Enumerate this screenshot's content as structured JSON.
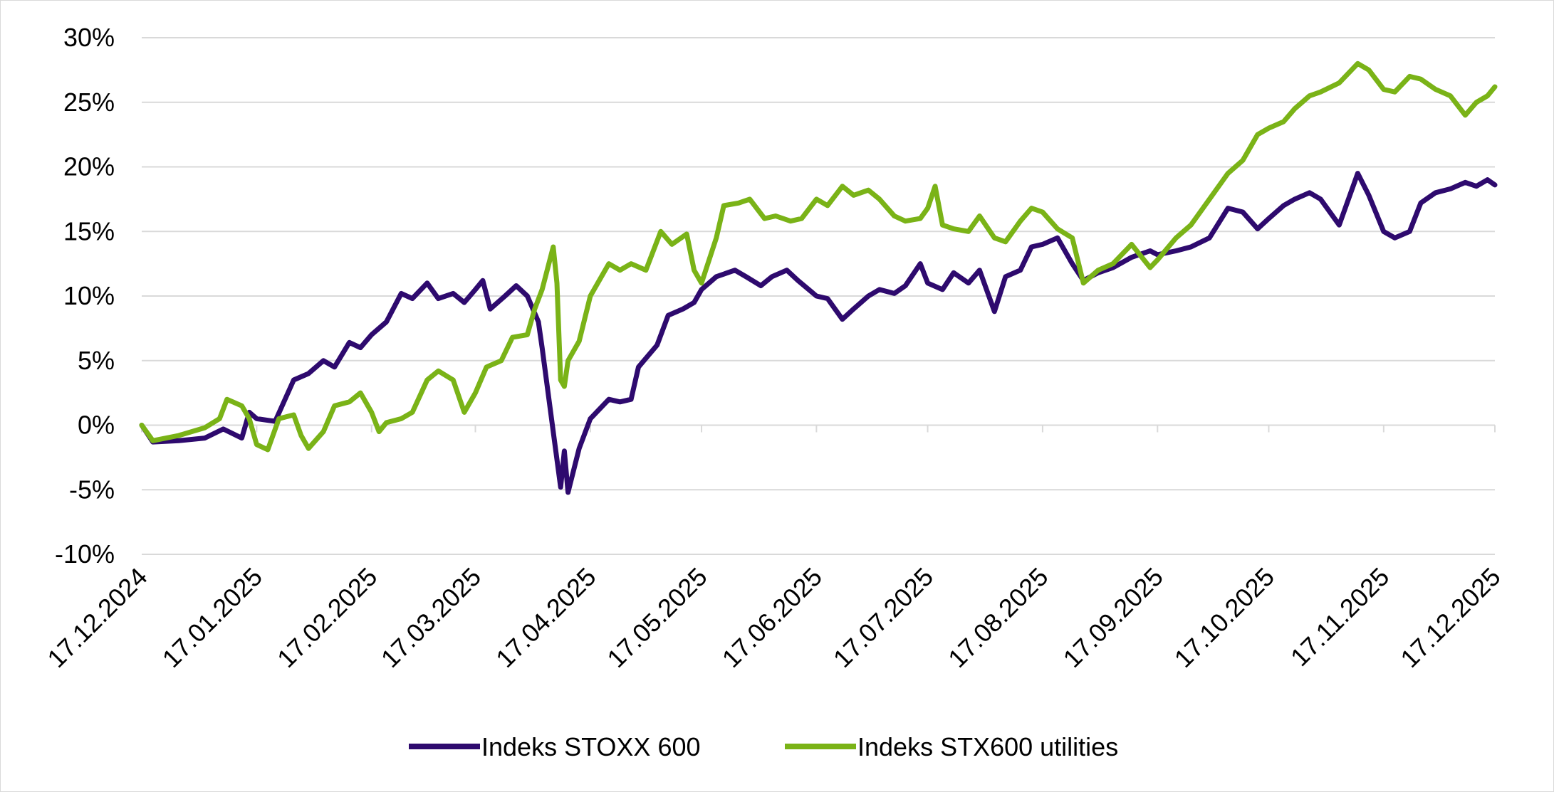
{
  "chart_data": {
    "type": "line",
    "title": "",
    "xlabel": "",
    "ylabel": "",
    "x_start": "17.12.2024",
    "x_end": "17.12.2025",
    "ylim": [
      -10,
      30
    ],
    "yticks": [
      -10,
      -5,
      0,
      5,
      10,
      15,
      20,
      25,
      30
    ],
    "ytick_labels": [
      "-10%",
      "-5%",
      "0%",
      "5%",
      "10%",
      "15%",
      "20%",
      "25%",
      "30%"
    ],
    "xtick_labels": [
      "17.12.2024",
      "17.01.2025",
      "17.02.2025",
      "17.03.2025",
      "17.04.2025",
      "17.05.2025",
      "17.06.2025",
      "17.07.2025",
      "17.08.2025",
      "17.09.2025",
      "17.10.2025",
      "17.11.2025",
      "17.12.2025"
    ],
    "grid": "horizontal",
    "legend_position": "bottom",
    "series": [
      {
        "name": "Indeks STOXX 600",
        "color": "#2e0a6e",
        "points": [
          [
            "17.12.2024",
            0.0
          ],
          [
            "20.12.2024",
            -1.3
          ],
          [
            "27.12.2024",
            -1.2
          ],
          [
            "03.01.2025",
            -1.0
          ],
          [
            "08.01.2025",
            -0.3
          ],
          [
            "13.01.2025",
            -1.0
          ],
          [
            "15.01.2025",
            1.0
          ],
          [
            "17.01.2025",
            0.5
          ],
          [
            "22.01.2025",
            0.3
          ],
          [
            "27.01.2025",
            3.5
          ],
          [
            "31.01.2025",
            4.0
          ],
          [
            "04.02.2025",
            5.0
          ],
          [
            "07.02.2025",
            4.5
          ],
          [
            "11.02.2025",
            6.4
          ],
          [
            "14.02.2025",
            6.0
          ],
          [
            "17.02.2025",
            7.0
          ],
          [
            "21.02.2025",
            8.0
          ],
          [
            "25.02.2025",
            10.2
          ],
          [
            "28.02.2025",
            9.8
          ],
          [
            "04.03.2025",
            11.0
          ],
          [
            "07.03.2025",
            9.8
          ],
          [
            "11.03.2025",
            10.2
          ],
          [
            "14.03.2025",
            9.5
          ],
          [
            "17.03.2025",
            10.5
          ],
          [
            "19.03.2025",
            11.2
          ],
          [
            "21.03.2025",
            9.0
          ],
          [
            "25.03.2025",
            10.0
          ],
          [
            "28.03.2025",
            10.8
          ],
          [
            "31.03.2025",
            10.0
          ],
          [
            "03.04.2025",
            8.0
          ],
          [
            "04.04.2025",
            6.0
          ],
          [
            "07.04.2025",
            -0.5
          ],
          [
            "09.04.2025",
            -4.8
          ],
          [
            "10.04.2025",
            -2.0
          ],
          [
            "11.04.2025",
            -5.2
          ],
          [
            "14.04.2025",
            -1.8
          ],
          [
            "17.04.2025",
            0.5
          ],
          [
            "22.04.2025",
            2.0
          ],
          [
            "25.04.2025",
            1.8
          ],
          [
            "28.04.2025",
            2.0
          ],
          [
            "30.04.2025",
            4.5
          ],
          [
            "05.05.2025",
            6.2
          ],
          [
            "08.05.2025",
            8.5
          ],
          [
            "12.05.2025",
            9.0
          ],
          [
            "15.05.2025",
            9.5
          ],
          [
            "17.05.2025",
            10.5
          ],
          [
            "21.05.2025",
            11.5
          ],
          [
            "26.05.2025",
            12.0
          ],
          [
            "29.05.2025",
            11.5
          ],
          [
            "02.06.2025",
            10.8
          ],
          [
            "05.06.2025",
            11.5
          ],
          [
            "09.06.2025",
            12.0
          ],
          [
            "12.06.2025",
            11.2
          ],
          [
            "17.06.2025",
            10.0
          ],
          [
            "20.06.2025",
            9.8
          ],
          [
            "24.06.2025",
            8.2
          ],
          [
            "27.06.2025",
            9.0
          ],
          [
            "01.07.2025",
            10.0
          ],
          [
            "04.07.2025",
            10.5
          ],
          [
            "08.07.2025",
            10.2
          ],
          [
            "11.07.2025",
            10.8
          ],
          [
            "15.07.2025",
            12.5
          ],
          [
            "17.07.2025",
            11.0
          ],
          [
            "21.07.2025",
            10.5
          ],
          [
            "24.07.2025",
            11.8
          ],
          [
            "28.07.2025",
            11.0
          ],
          [
            "31.07.2025",
            12.0
          ],
          [
            "04.08.2025",
            8.8
          ],
          [
            "07.08.2025",
            11.5
          ],
          [
            "11.08.2025",
            12.0
          ],
          [
            "14.08.2025",
            13.8
          ],
          [
            "17.08.2025",
            14.0
          ],
          [
            "21.08.2025",
            14.5
          ],
          [
            "25.08.2025",
            12.5
          ],
          [
            "28.08.2025",
            11.2
          ],
          [
            "01.09.2025",
            11.8
          ],
          [
            "05.09.2025",
            12.2
          ],
          [
            "10.09.2025",
            13.0
          ],
          [
            "15.09.2025",
            13.5
          ],
          [
            "17.09.2025",
            13.2
          ],
          [
            "22.09.2025",
            13.5
          ],
          [
            "26.09.2025",
            13.8
          ],
          [
            "01.10.2025",
            14.5
          ],
          [
            "06.10.2025",
            16.8
          ],
          [
            "10.10.2025",
            16.5
          ],
          [
            "14.10.2025",
            15.2
          ],
          [
            "17.10.2025",
            16.0
          ],
          [
            "21.10.2025",
            17.0
          ],
          [
            "24.10.2025",
            17.5
          ],
          [
            "28.10.2025",
            18.0
          ],
          [
            "31.10.2025",
            17.5
          ],
          [
            "05.11.2025",
            15.5
          ],
          [
            "10.11.2025",
            19.5
          ],
          [
            "13.11.2025",
            17.8
          ],
          [
            "17.11.2025",
            15.0
          ],
          [
            "20.11.2025",
            14.5
          ],
          [
            "24.11.2025",
            15.0
          ],
          [
            "27.11.2025",
            17.2
          ],
          [
            "01.12.2025",
            18.0
          ],
          [
            "05.12.2025",
            18.3
          ],
          [
            "09.12.2025",
            18.8
          ],
          [
            "12.12.2025",
            18.5
          ],
          [
            "15.12.2025",
            19.0
          ],
          [
            "17.12.2025",
            18.6
          ]
        ]
      },
      {
        "name": "Indeks STX600 utilities",
        "color": "#7ab317",
        "points": [
          [
            "17.12.2024",
            0.0
          ],
          [
            "20.12.2024",
            -1.2
          ],
          [
            "27.12.2024",
            -0.8
          ],
          [
            "03.01.2025",
            -0.2
          ],
          [
            "07.01.2025",
            0.5
          ],
          [
            "09.01.2025",
            2.0
          ],
          [
            "13.01.2025",
            1.5
          ],
          [
            "15.01.2025",
            0.5
          ],
          [
            "17.01.2025",
            -1.5
          ],
          [
            "20.01.2025",
            -1.9
          ],
          [
            "23.01.2025",
            0.5
          ],
          [
            "27.01.2025",
            0.8
          ],
          [
            "29.01.2025",
            -0.8
          ],
          [
            "31.01.2025",
            -1.8
          ],
          [
            "04.02.2025",
            -0.5
          ],
          [
            "07.02.2025",
            1.5
          ],
          [
            "11.02.2025",
            1.8
          ],
          [
            "14.02.2025",
            2.5
          ],
          [
            "17.02.2025",
            1.0
          ],
          [
            "19.02.2025",
            -0.5
          ],
          [
            "21.02.2025",
            0.2
          ],
          [
            "25.02.2025",
            0.5
          ],
          [
            "28.02.2025",
            1.0
          ],
          [
            "04.03.2025",
            3.5
          ],
          [
            "07.03.2025",
            4.2
          ],
          [
            "11.03.2025",
            3.5
          ],
          [
            "14.03.2025",
            1.0
          ],
          [
            "17.03.2025",
            2.5
          ],
          [
            "20.03.2025",
            4.5
          ],
          [
            "24.03.2025",
            5.0
          ],
          [
            "27.03.2025",
            6.8
          ],
          [
            "31.03.2025",
            7.0
          ],
          [
            "02.04.2025",
            9.0
          ],
          [
            "04.04.2025",
            10.5
          ],
          [
            "07.04.2025",
            13.8
          ],
          [
            "08.04.2025",
            11.0
          ],
          [
            "09.04.2025",
            3.5
          ],
          [
            "10.04.2025",
            3.0
          ],
          [
            "11.04.2025",
            5.0
          ],
          [
            "14.04.2025",
            6.5
          ],
          [
            "17.04.2025",
            10.0
          ],
          [
            "22.04.2025",
            12.5
          ],
          [
            "25.04.2025",
            12.0
          ],
          [
            "28.04.2025",
            12.5
          ],
          [
            "02.05.2025",
            12.0
          ],
          [
            "06.05.2025",
            15.0
          ],
          [
            "09.05.2025",
            14.0
          ],
          [
            "13.05.2025",
            14.8
          ],
          [
            "15.05.2025",
            12.0
          ],
          [
            "17.05.2025",
            11.0
          ],
          [
            "21.05.2025",
            14.5
          ],
          [
            "23.05.2025",
            17.0
          ],
          [
            "27.05.2025",
            17.2
          ],
          [
            "30.05.2025",
            17.5
          ],
          [
            "03.06.2025",
            16.0
          ],
          [
            "06.06.2025",
            16.2
          ],
          [
            "10.06.2025",
            15.8
          ],
          [
            "13.06.2025",
            16.0
          ],
          [
            "17.06.2025",
            17.5
          ],
          [
            "20.06.2025",
            17.0
          ],
          [
            "24.06.2025",
            18.5
          ],
          [
            "27.06.2025",
            17.8
          ],
          [
            "01.07.2025",
            18.2
          ],
          [
            "04.07.2025",
            17.5
          ],
          [
            "08.07.2025",
            16.2
          ],
          [
            "11.07.2025",
            15.8
          ],
          [
            "15.07.2025",
            16.0
          ],
          [
            "17.07.2025",
            16.8
          ],
          [
            "19.07.2025",
            18.5
          ],
          [
            "21.07.2025",
            15.5
          ],
          [
            "24.07.2025",
            15.2
          ],
          [
            "28.07.2025",
            15.0
          ],
          [
            "31.07.2025",
            16.2
          ],
          [
            "04.08.2025",
            14.5
          ],
          [
            "07.08.2025",
            14.2
          ],
          [
            "11.08.2025",
            15.8
          ],
          [
            "14.08.2025",
            16.8
          ],
          [
            "17.08.2025",
            16.5
          ],
          [
            "21.08.2025",
            15.2
          ],
          [
            "25.08.2025",
            14.5
          ],
          [
            "28.08.2025",
            11.0
          ],
          [
            "01.09.2025",
            12.0
          ],
          [
            "05.09.2025",
            12.5
          ],
          [
            "10.09.2025",
            14.0
          ],
          [
            "15.09.2025",
            12.2
          ],
          [
            "17.09.2025",
            12.8
          ],
          [
            "22.09.2025",
            14.5
          ],
          [
            "26.09.2025",
            15.5
          ],
          [
            "01.10.2025",
            17.5
          ],
          [
            "06.10.2025",
            19.5
          ],
          [
            "10.10.2025",
            20.5
          ],
          [
            "14.10.2025",
            22.5
          ],
          [
            "17.10.2025",
            23.0
          ],
          [
            "21.10.2025",
            23.5
          ],
          [
            "24.10.2025",
            24.5
          ],
          [
            "28.10.2025",
            25.5
          ],
          [
            "31.10.2025",
            25.8
          ],
          [
            "05.11.2025",
            26.5
          ],
          [
            "10.11.2025",
            28.0
          ],
          [
            "13.11.2025",
            27.5
          ],
          [
            "17.11.2025",
            26.0
          ],
          [
            "20.11.2025",
            25.8
          ],
          [
            "24.11.2025",
            27.0
          ],
          [
            "27.11.2025",
            26.8
          ],
          [
            "01.12.2025",
            26.0
          ],
          [
            "05.12.2025",
            25.5
          ],
          [
            "09.12.2025",
            24.0
          ],
          [
            "12.12.2025",
            25.0
          ],
          [
            "15.12.2025",
            25.5
          ],
          [
            "17.12.2025",
            26.2
          ]
        ]
      }
    ]
  }
}
